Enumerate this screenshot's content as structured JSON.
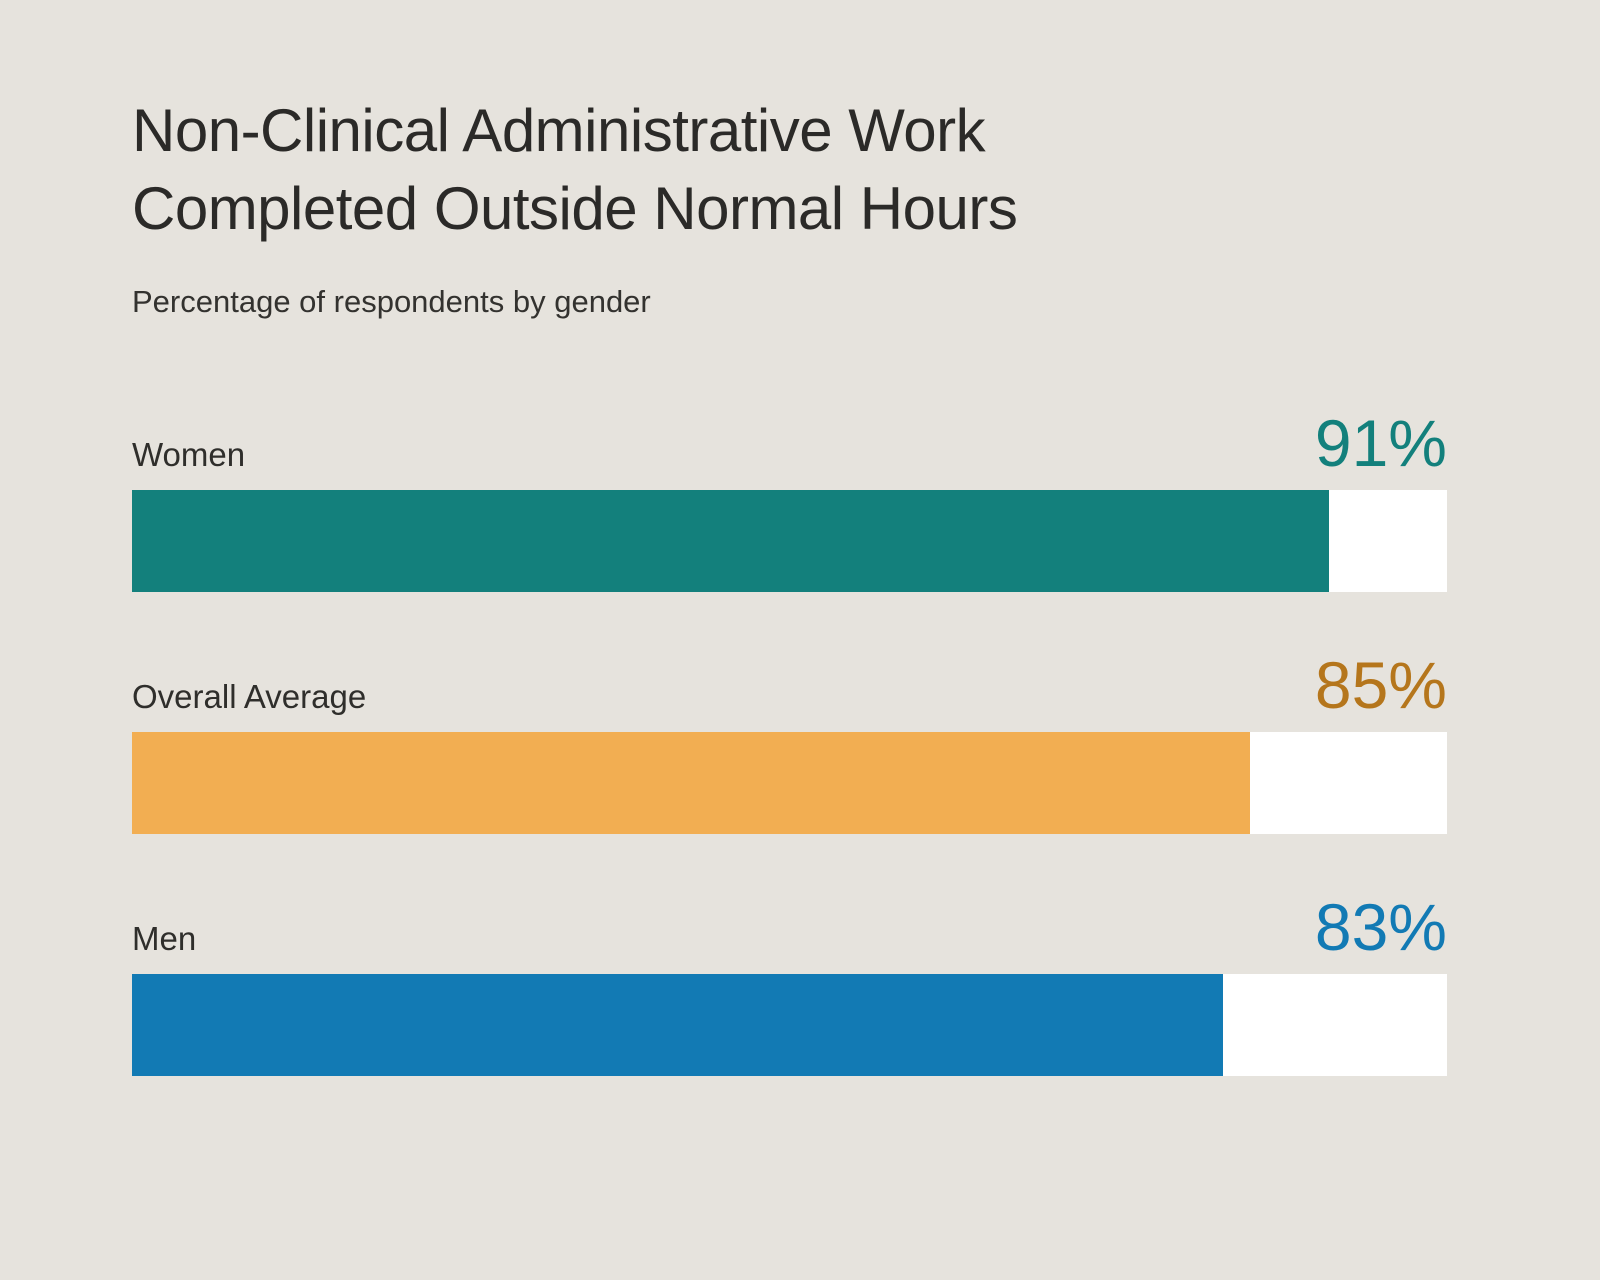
{
  "header": {
    "title_line1": "Non-Clinical Administrative Work",
    "title_line2": "Completed Outside Normal Hours",
    "subtitle": "Percentage of respondents by gender"
  },
  "colors": {
    "background": "#e6e3dd",
    "track": "#ffffff",
    "title_text": "#2b2a28",
    "teal": "#13807c",
    "orange": "#f2ae52",
    "orange_text": "#b5761c",
    "blue": "#127ab4"
  },
  "chart_data": {
    "type": "bar",
    "orientation": "horizontal",
    "title": "Non-Clinical Administrative Work Completed Outside Normal Hours",
    "subtitle": "Percentage of respondents by gender",
    "categories": [
      "Women",
      "Overall Average",
      "Men"
    ],
    "values": [
      91,
      85,
      83
    ],
    "unit": "%",
    "xlim": [
      0,
      100
    ],
    "grid": false,
    "legend": "none",
    "bars": [
      {
        "label": "Women",
        "value": 91,
        "value_label": "91%",
        "bar_color": "#13807c",
        "value_color": "#13807c"
      },
      {
        "label": "Overall Average",
        "value": 85,
        "value_label": "85%",
        "bar_color": "#f2ae52",
        "value_color": "#b5761c"
      },
      {
        "label": "Men",
        "value": 83,
        "value_label": "83%",
        "bar_color": "#127ab4",
        "value_color": "#127ab4"
      }
    ]
  }
}
